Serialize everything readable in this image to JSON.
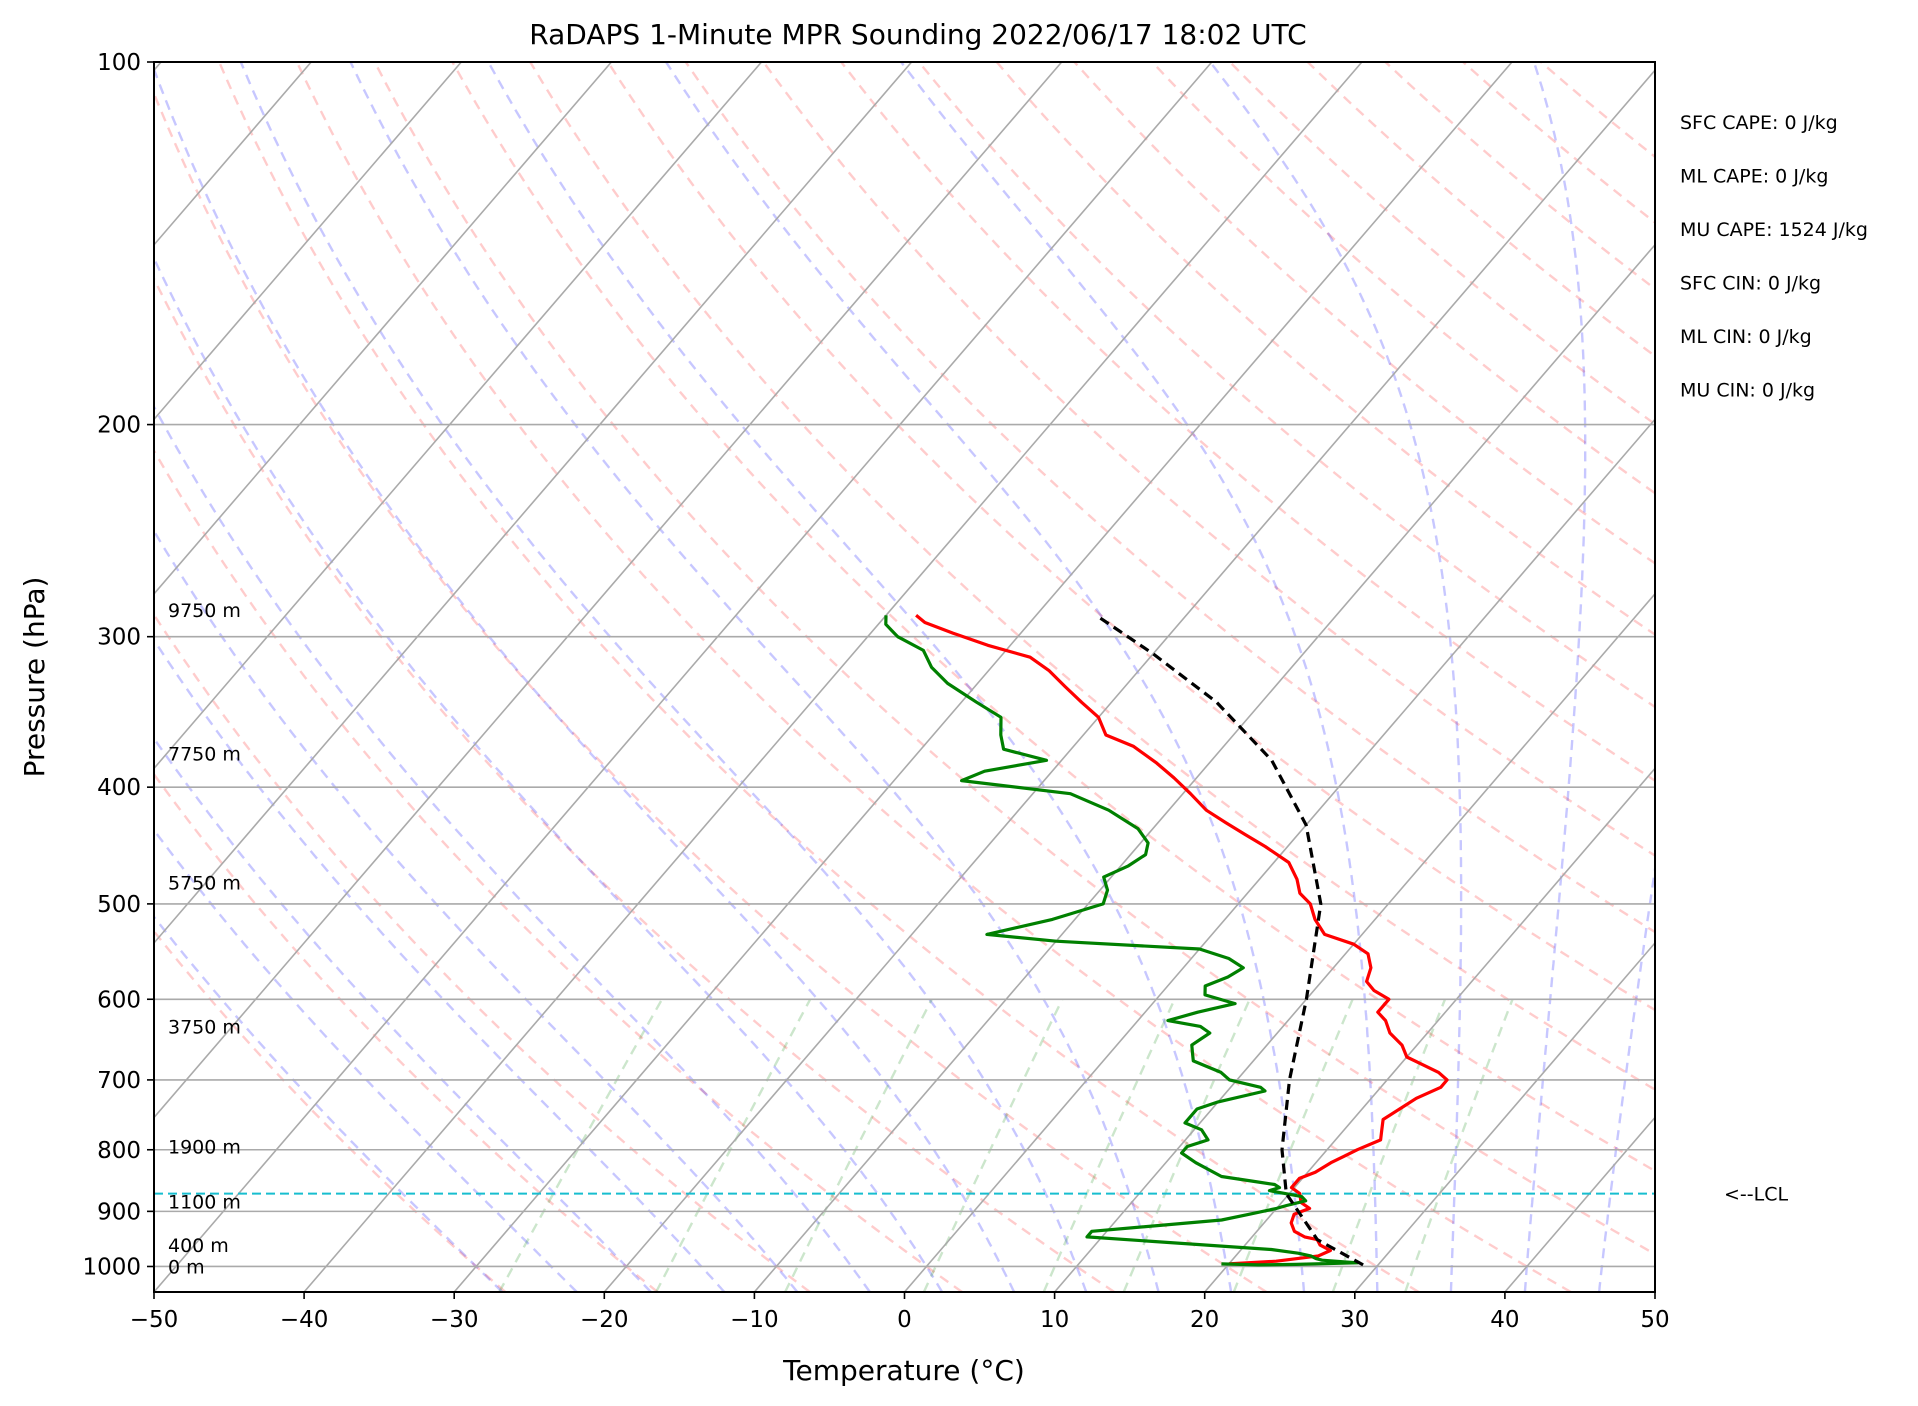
{
  "chart_data": {
    "type": "skew-t",
    "title": "RaDAPS 1-Minute MPR Sounding 2022/06/17 18:02 UTC",
    "xlabel": "Temperature (°C)",
    "ylabel": "Pressure (hPa)",
    "xlim": [
      -50,
      50
    ],
    "ylim": [
      1050,
      100
    ],
    "y_scale": "log",
    "grid": true,
    "x_ticks": [
      "−50",
      "−40",
      "−30",
      "−20",
      "−10",
      "0",
      "10",
      "20",
      "30",
      "40",
      "50"
    ],
    "y_ticks": [
      "100",
      "200",
      "300",
      "400",
      "500",
      "600",
      "700",
      "800",
      "900",
      "1000"
    ],
    "height_labels": [
      {
        "pressure": 1000,
        "text": "0 m"
      },
      {
        "pressure": 960,
        "text": "400 m"
      },
      {
        "pressure": 883,
        "text": "1100 m"
      },
      {
        "pressure": 795,
        "text": "1900 m"
      },
      {
        "pressure": 632,
        "text": "3750 m"
      },
      {
        "pressure": 480,
        "text": "5750 m"
      },
      {
        "pressure": 375,
        "text": "7750 m"
      },
      {
        "pressure": 285,
        "text": "9750 m"
      }
    ],
    "parameters": [
      "SFC CAPE: 0 J/kg",
      "ML CAPE: 0 J/kg",
      "MU CAPE: 1524 J/kg",
      "SFC CIN: 0 J/kg",
      "ML CIN: 0 J/kg",
      "MU CIN: 0 J/kg"
    ],
    "lcl": {
      "pressure": 870,
      "label": "<--LCL"
    },
    "series": [
      {
        "role": "temperature",
        "color": "#ff0000",
        "points": [
          [
            20.0,
            995
          ],
          [
            23.0,
            990
          ],
          [
            25.5,
            980
          ],
          [
            26.0,
            970
          ],
          [
            25.0,
            960
          ],
          [
            24.5,
            950
          ],
          [
            23.5,
            945
          ],
          [
            22.5,
            935
          ],
          [
            21.8,
            920
          ],
          [
            21.5,
            905
          ],
          [
            22.2,
            895
          ],
          [
            21.3,
            885
          ],
          [
            20.7,
            870
          ],
          [
            19.8,
            860
          ],
          [
            19.8,
            845
          ],
          [
            20.5,
            835
          ],
          [
            21.0,
            820
          ],
          [
            21.5,
            810
          ],
          [
            22.0,
            800
          ],
          [
            23.0,
            785
          ],
          [
            22.5,
            770
          ],
          [
            22.0,
            755
          ],
          [
            22.5,
            740
          ],
          [
            23.0,
            725
          ],
          [
            24.0,
            710
          ],
          [
            24.0,
            700
          ],
          [
            23.0,
            690
          ],
          [
            21.5,
            680
          ],
          [
            20.0,
            670
          ],
          [
            19.0,
            655
          ],
          [
            17.5,
            640
          ],
          [
            16.5,
            625
          ],
          [
            15.5,
            615
          ],
          [
            15.5,
            600
          ],
          [
            14.0,
            590
          ],
          [
            13.0,
            580
          ],
          [
            12.5,
            565
          ],
          [
            11.5,
            550
          ],
          [
            10.0,
            540
          ],
          [
            7.5,
            530
          ],
          [
            6.0,
            515
          ],
          [
            4.8,
            500
          ],
          [
            3.5,
            490
          ],
          [
            2.5,
            477
          ],
          [
            1.0,
            462
          ],
          [
            -1.5,
            448
          ],
          [
            -3.5,
            438
          ],
          [
            -5.5,
            428
          ],
          [
            -7.5,
            418
          ],
          [
            -9.5,
            405
          ],
          [
            -11.5,
            393
          ],
          [
            -13.5,
            382
          ],
          [
            -16.0,
            370
          ],
          [
            -18.5,
            362
          ],
          [
            -20.0,
            350
          ],
          [
            -22.0,
            340
          ],
          [
            -24.0,
            330
          ],
          [
            -26.0,
            320
          ],
          [
            -28.0,
            312
          ],
          [
            -31.5,
            305
          ],
          [
            -34.5,
            298
          ],
          [
            -37.0,
            292
          ],
          [
            -38.0,
            288
          ]
        ]
      },
      {
        "role": "dewpoint",
        "color": "#008000",
        "points": [
          [
            19.5,
            995
          ],
          [
            22.0,
            997
          ],
          [
            24.5,
            996
          ],
          [
            28.5,
            993
          ],
          [
            26.0,
            988
          ],
          [
            25.5,
            985
          ],
          [
            25.0,
            980
          ],
          [
            24.0,
            975
          ],
          [
            22.0,
            968
          ],
          [
            9.0,
            945
          ],
          [
            9.0,
            935
          ],
          [
            17.0,
            915
          ],
          [
            18.5,
            905
          ],
          [
            20.0,
            895
          ],
          [
            20.5,
            890
          ],
          [
            21.5,
            882
          ],
          [
            21.0,
            875
          ],
          [
            18.5,
            865
          ],
          [
            19.0,
            860
          ],
          [
            18.5,
            855
          ],
          [
            17.0,
            850
          ],
          [
            14.5,
            842
          ],
          [
            12.0,
            820
          ],
          [
            10.5,
            805
          ],
          [
            10.5,
            795
          ],
          [
            11.5,
            785
          ],
          [
            10.5,
            770
          ],
          [
            9.0,
            760
          ],
          [
            9.0,
            740
          ],
          [
            10.0,
            730
          ],
          [
            12.5,
            715
          ],
          [
            12.0,
            710
          ],
          [
            9.5,
            700
          ],
          [
            8.5,
            690
          ],
          [
            6.0,
            675
          ],
          [
            5.5,
            665
          ],
          [
            5.0,
            655
          ],
          [
            5.5,
            640
          ],
          [
            4.5,
            632
          ],
          [
            2.0,
            625
          ],
          [
            3.5,
            615
          ],
          [
            5.5,
            605
          ],
          [
            3.0,
            595
          ],
          [
            2.5,
            585
          ],
          [
            3.5,
            575
          ],
          [
            4.0,
            565
          ],
          [
            2.5,
            555
          ],
          [
            0.0,
            545
          ],
          [
            -10.0,
            537
          ],
          [
            -15.0,
            530
          ],
          [
            -11.5,
            515
          ],
          [
            -9.0,
            500
          ],
          [
            -9.5,
            487
          ],
          [
            -10.5,
            475
          ],
          [
            -9.5,
            465
          ],
          [
            -9.0,
            455
          ],
          [
            -9.5,
            445
          ],
          [
            -11.0,
            433
          ],
          [
            -14.0,
            418
          ],
          [
            -17.5,
            405
          ],
          [
            -25.5,
            395
          ],
          [
            -24.5,
            388
          ],
          [
            -21.0,
            380
          ],
          [
            -24.5,
            372
          ],
          [
            -25.5,
            362
          ],
          [
            -26.5,
            350
          ],
          [
            -29.0,
            340
          ],
          [
            -32.0,
            328
          ],
          [
            -34.0,
            318
          ],
          [
            -35.5,
            308
          ],
          [
            -38.0,
            300
          ],
          [
            -39.5,
            293
          ],
          [
            -40.0,
            288
          ]
        ]
      },
      {
        "role": "parcel",
        "color": "#000000",
        "style": "dashed",
        "points": [
          [
            29.0,
            997
          ],
          [
            24.5,
            950
          ],
          [
            19.8,
            870
          ],
          [
            17.0,
            800
          ],
          [
            13.5,
            700
          ],
          [
            10.0,
            600
          ],
          [
            5.5,
            500
          ],
          [
            0.0,
            430
          ],
          [
            -6.0,
            380
          ],
          [
            -13.0,
            340
          ],
          [
            -20.0,
            310
          ],
          [
            -26.0,
            288
          ]
        ]
      }
    ]
  }
}
